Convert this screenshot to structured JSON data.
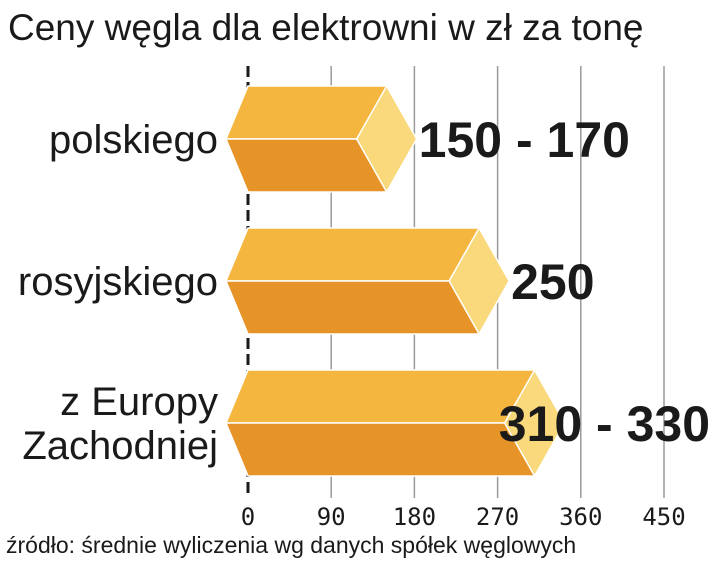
{
  "chart_data": {
    "type": "bar",
    "orientation": "horizontal",
    "title": "Ceny węgla dla elektrowni w zł za tonę",
    "source": "źródło: średnie wyliczenia wg danych spółek węglowych",
    "categories": [
      [
        "polskiego"
      ],
      [
        "rosyjskiego"
      ],
      [
        "z Europy",
        "Zachodniej"
      ]
    ],
    "value_labels": [
      "150 - 170",
      "250",
      "310 - 330"
    ],
    "values": [
      150,
      250,
      310
    ],
    "ranges": [
      [
        150,
        170
      ],
      [
        250,
        250
      ],
      [
        310,
        330
      ]
    ],
    "x_ticks": [
      "0",
      "90",
      "180",
      "270",
      "360",
      "450"
    ],
    "xlim": [
      0,
      450
    ],
    "grid": true,
    "colors": {
      "bar_top": "#f4b63f",
      "bar_bottom": "#e69427",
      "bar_cap": "#f9d97b",
      "bar_edge": "#ffffff",
      "grid": "#9a9a9a",
      "axis": "#1a1a1a"
    }
  }
}
